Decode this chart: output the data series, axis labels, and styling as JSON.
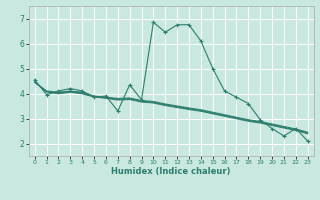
{
  "xlabel": "Humidex (Indice chaleur)",
  "xlim": [
    -0.5,
    23.5
  ],
  "ylim": [
    1.5,
    7.5
  ],
  "yticks": [
    2,
    3,
    4,
    5,
    6,
    7
  ],
  "xticks": [
    0,
    1,
    2,
    3,
    4,
    5,
    6,
    7,
    8,
    9,
    10,
    11,
    12,
    13,
    14,
    15,
    16,
    17,
    18,
    19,
    20,
    21,
    22,
    23
  ],
  "background_color": "#c8e8e0",
  "grid_color": "#ffffff",
  "line_color": "#2e7d6e",
  "lines": [
    {
      "x": [
        0,
        1,
        2,
        3,
        4,
        5,
        6,
        7,
        8,
        9,
        10,
        11,
        12,
        13,
        14,
        15,
        16,
        17,
        18,
        19,
        20,
        21,
        22,
        23
      ],
      "y": [
        4.55,
        3.95,
        4.1,
        4.2,
        4.1,
        3.85,
        3.9,
        3.3,
        4.35,
        3.75,
        6.85,
        6.45,
        6.75,
        6.75,
        6.1,
        5.0,
        4.1,
        3.85,
        3.6,
        2.95,
        2.6,
        2.3,
        2.6,
        2.1
      ],
      "marker": true
    },
    {
      "x": [
        0,
        1,
        2,
        3,
        4,
        5,
        6,
        7,
        8,
        9,
        10,
        11,
        12,
        13,
        14,
        15,
        16,
        17,
        18,
        19,
        20,
        21,
        22,
        23
      ],
      "y": [
        4.45,
        4.1,
        4.05,
        4.1,
        4.05,
        3.9,
        3.85,
        3.8,
        3.82,
        3.72,
        3.68,
        3.58,
        3.5,
        3.42,
        3.35,
        3.25,
        3.15,
        3.05,
        2.95,
        2.88,
        2.78,
        2.68,
        2.58,
        2.45
      ],
      "marker": false
    },
    {
      "x": [
        0,
        1,
        2,
        3,
        4,
        5,
        6,
        7,
        8,
        9,
        10,
        11,
        12,
        13,
        14,
        15,
        16,
        17,
        18,
        19,
        20,
        21,
        22,
        23
      ],
      "y": [
        4.45,
        4.08,
        4.02,
        4.08,
        4.02,
        3.88,
        3.83,
        3.77,
        3.79,
        3.69,
        3.65,
        3.55,
        3.47,
        3.39,
        3.32,
        3.22,
        3.12,
        3.02,
        2.92,
        2.85,
        2.75,
        2.65,
        2.55,
        2.42
      ],
      "marker": false
    },
    {
      "x": [
        0,
        1,
        2,
        3,
        4,
        5,
        6,
        7,
        8,
        9,
        10,
        11,
        12,
        13,
        14,
        15,
        16,
        17,
        18,
        19,
        20,
        21,
        22,
        23
      ],
      "y": [
        4.45,
        4.06,
        3.99,
        4.05,
        3.99,
        3.86,
        3.81,
        3.74,
        3.76,
        3.66,
        3.62,
        3.52,
        3.44,
        3.36,
        3.29,
        3.19,
        3.09,
        2.99,
        2.89,
        2.82,
        2.72,
        2.62,
        2.52,
        2.39
      ],
      "marker": false
    }
  ]
}
